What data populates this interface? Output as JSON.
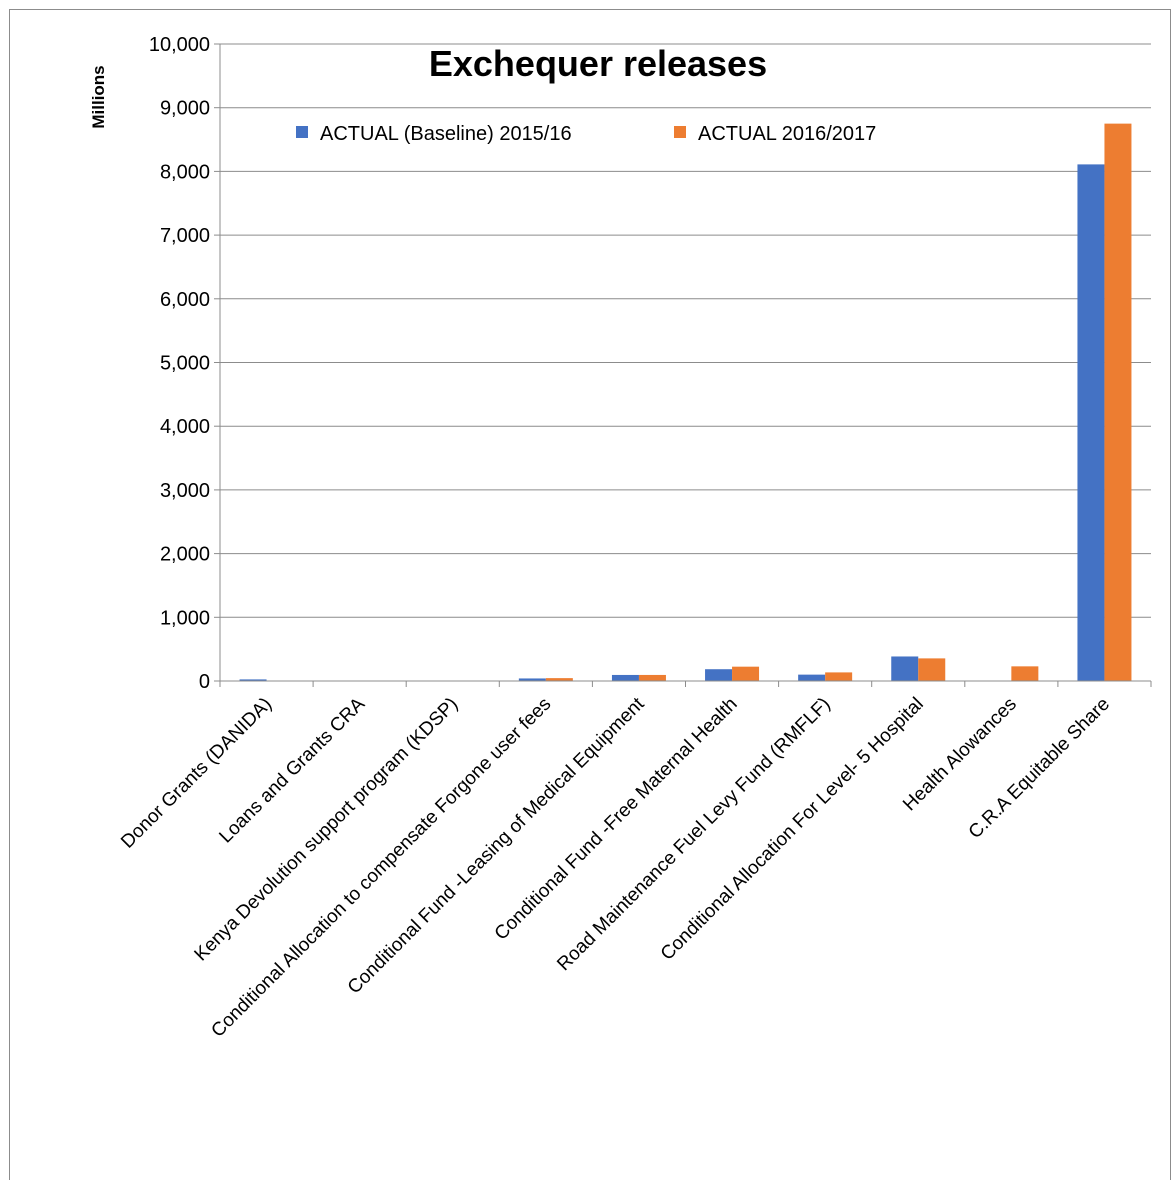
{
  "chart_data": {
    "type": "bar",
    "title": "Exchequer releases",
    "ylabel": "Millions",
    "xlabel": "",
    "ylim": [
      0,
      10000
    ],
    "yticks": [
      0,
      1000,
      2000,
      3000,
      4000,
      5000,
      6000,
      7000,
      8000,
      9000,
      10000
    ],
    "ytick_labels": [
      "0",
      "1,000",
      "2,000",
      "3,000",
      "4,000",
      "5,000",
      "6,000",
      "7,000",
      "8,000",
      "9,000",
      "10,000"
    ],
    "grid": true,
    "legend_position": "top",
    "categories": [
      "Donor Grants (DANIDA)",
      "Loans and Grants CRA",
      "Kenya Devolution support program (KDSP)",
      "Conditional Allocation to compensate Forgone user fees",
      "Conditional Fund -Leasing of Medical Equipment",
      "Conditional Fund -Free Maternal Health",
      "Road Maintenance Fuel Levy Fund (RMFLF)",
      "Conditional Allocation For Level- 5 Hospital",
      "Health Alowances",
      "C.R.A Equitable Share"
    ],
    "series": [
      {
        "name": "ACTUAL (Baseline) 2015/16",
        "color": "#4472C4",
        "values": [
          25,
          0,
          0,
          40,
          95,
          185,
          100,
          385,
          0,
          8110
        ]
      },
      {
        "name": "ACTUAL 2016/2017",
        "color": "#ED7D31",
        "values": [
          5,
          0,
          0,
          45,
          95,
          225,
          135,
          355,
          230,
          8750
        ]
      }
    ]
  }
}
